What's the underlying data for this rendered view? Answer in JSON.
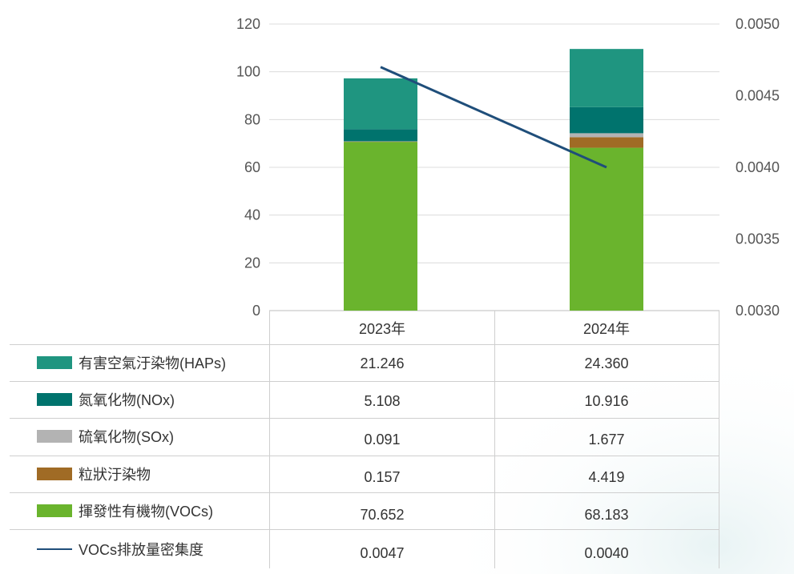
{
  "chart_data": {
    "type": "bar",
    "stacked": true,
    "categories": [
      "2023年",
      "2024年"
    ],
    "y_left": {
      "ylim": [
        0,
        120
      ],
      "ticks": [
        "0",
        "20",
        "40",
        "60",
        "80",
        "100",
        "120"
      ]
    },
    "y_right": {
      "ylim": [
        0.003,
        0.005
      ],
      "ticks": [
        "0.0030",
        "0.0035",
        "0.0040",
        "0.0045",
        "0.0050"
      ]
    },
    "grid": true,
    "series": [
      {
        "name": "揮發性有機物(VOCs)",
        "type": "bar",
        "axis": "left",
        "color": "#6ab42d",
        "values": [
          70.652,
          68.183
        ],
        "labels": [
          "70.652",
          "68.183"
        ]
      },
      {
        "name": "粒狀汙染物",
        "type": "bar",
        "axis": "left",
        "color": "#a06b25",
        "values": [
          0.157,
          4.419
        ],
        "labels": [
          "0.157",
          "4.419"
        ]
      },
      {
        "name": "硫氧化物(SOx)",
        "type": "bar",
        "axis": "left",
        "color": "#b3b3b3",
        "values": [
          0.091,
          1.677
        ],
        "labels": [
          "0.091",
          "1.677"
        ]
      },
      {
        "name": "氮氧化物(NOx)",
        "type": "bar",
        "axis": "left",
        "color": "#00736d",
        "values": [
          5.108,
          10.916
        ],
        "labels": [
          "5.108",
          "10.916"
        ]
      },
      {
        "name": "有害空氣汙染物(HAPs)",
        "type": "bar",
        "axis": "left",
        "color": "#1f9580",
        "values": [
          21.246,
          24.36
        ],
        "labels": [
          "21.246",
          "24.360"
        ]
      },
      {
        "name": "VOCs排放量密集度",
        "type": "line",
        "axis": "right",
        "color": "#1f4e7a",
        "values": [
          0.0047,
          0.004
        ],
        "labels": [
          "0.0047",
          "0.0040"
        ]
      }
    ],
    "table_row_order": [
      4,
      3,
      2,
      1,
      0,
      5
    ]
  }
}
